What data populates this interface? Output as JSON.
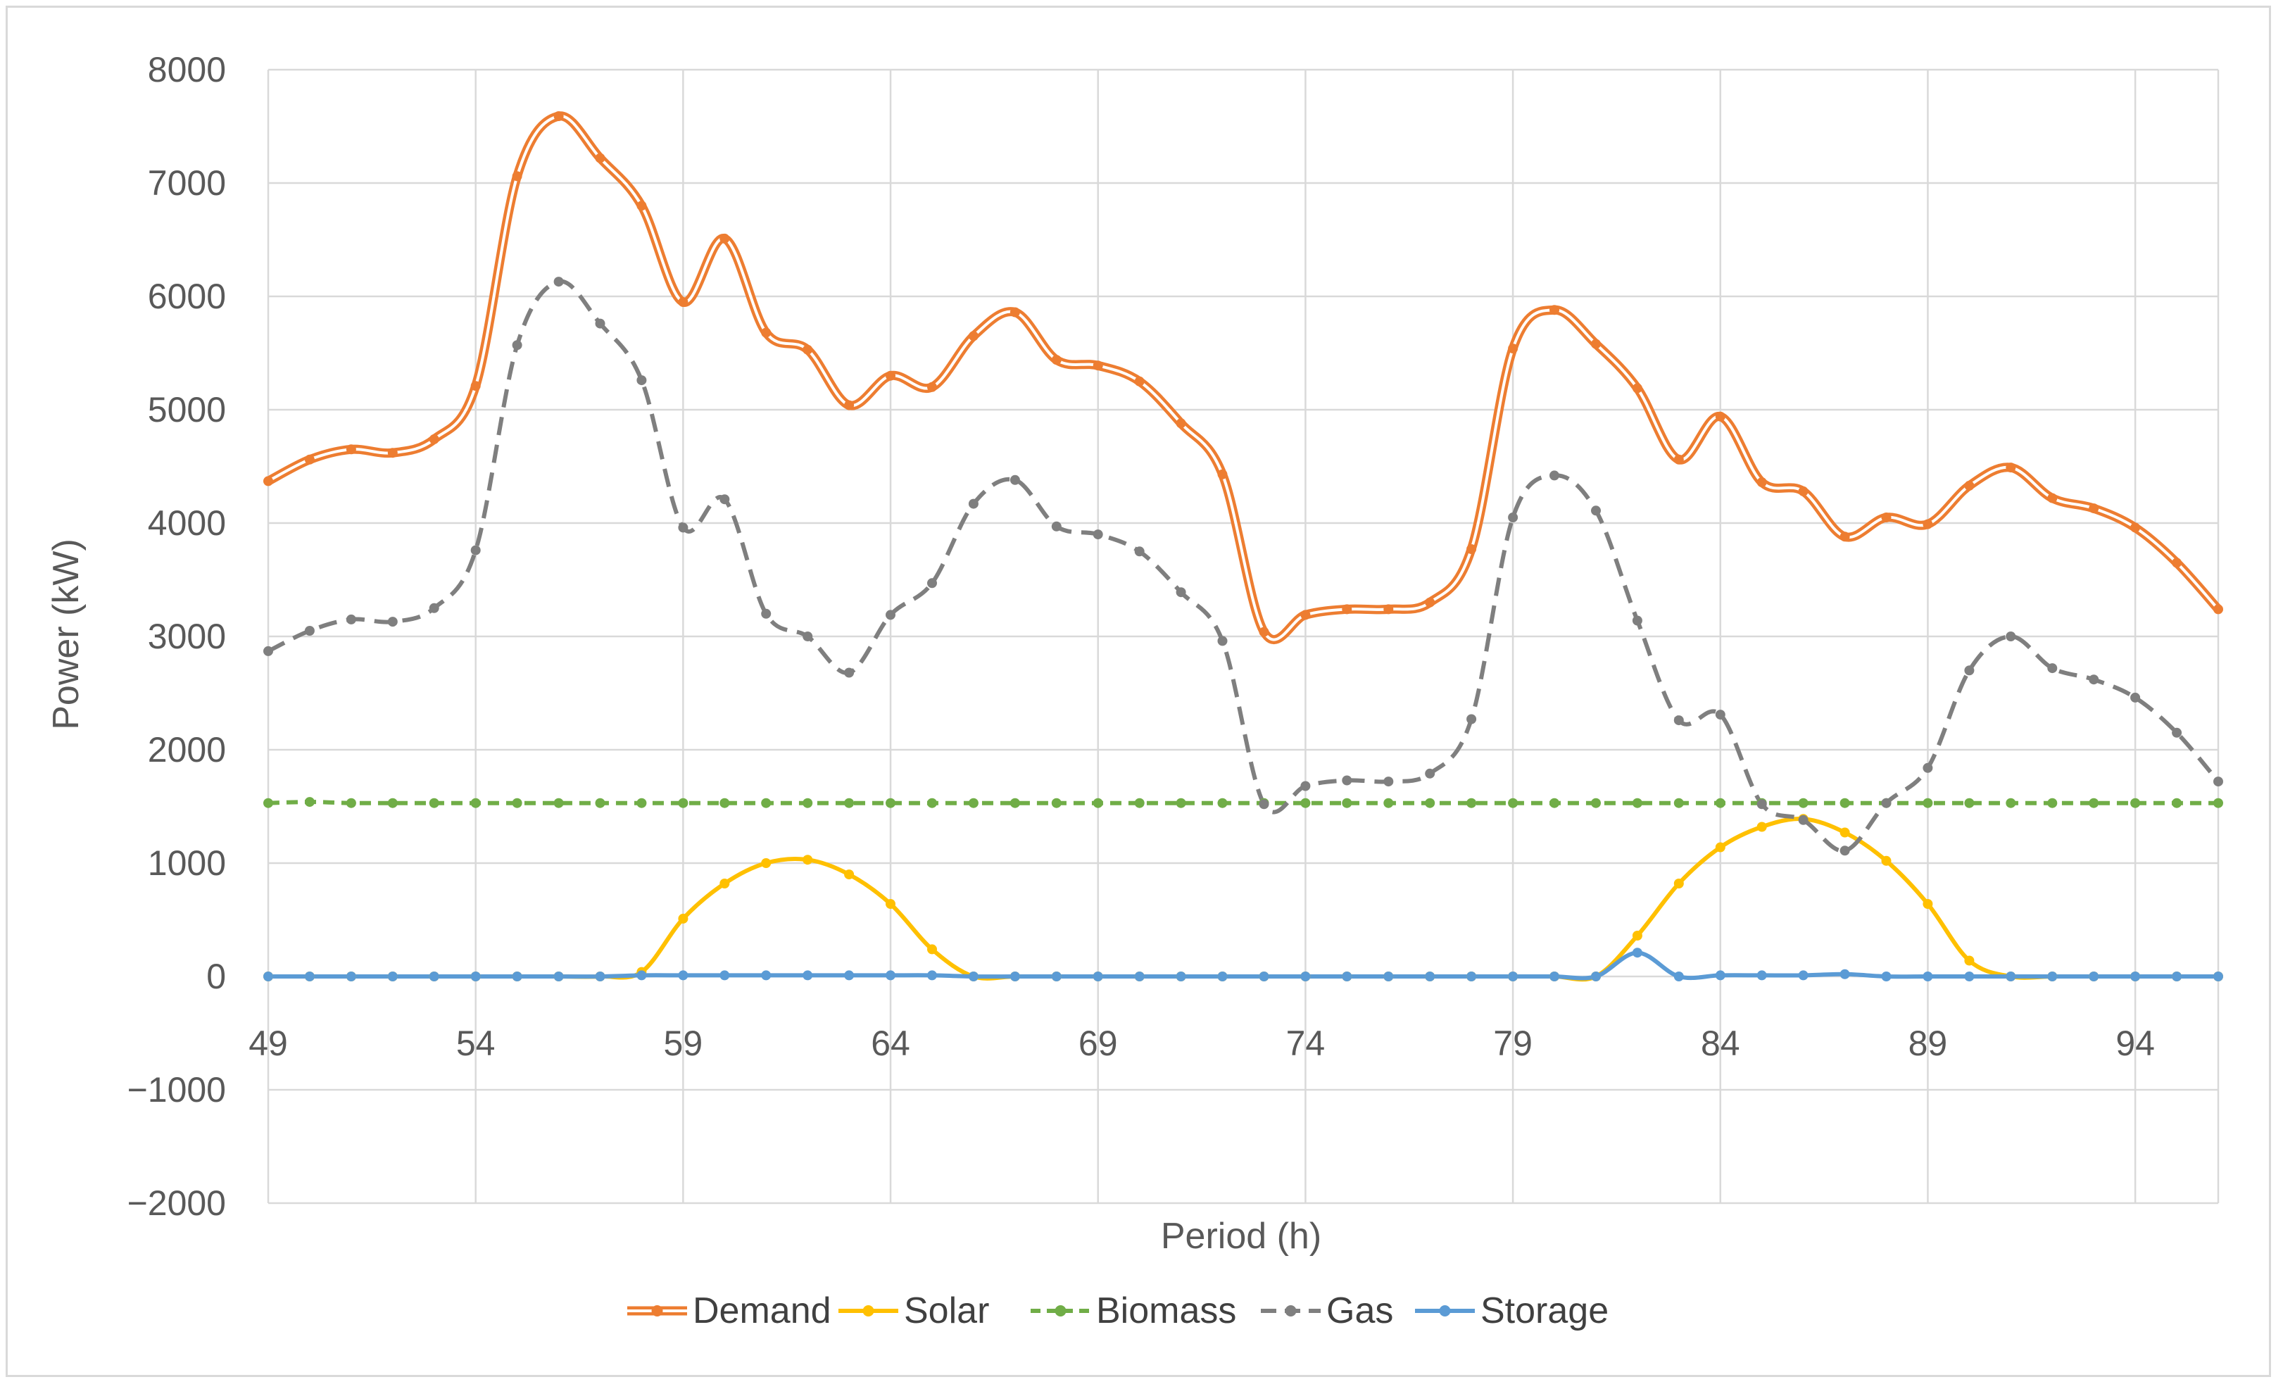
{
  "chart_data": {
    "type": "line",
    "title": "",
    "xlabel": "Period (h)",
    "ylabel": "Power (kW)",
    "xlim": [
      49,
      96
    ],
    "ylim": [
      -2000,
      8000
    ],
    "y_ticks": [
      -2000,
      -1000,
      0,
      1000,
      2000,
      3000,
      4000,
      5000,
      6000,
      7000,
      8000
    ],
    "y_tick_labels": [
      "−2000",
      "−1000",
      "0",
      "1000",
      "2000",
      "3000",
      "4000",
      "5000",
      "6000",
      "7000",
      "8000"
    ],
    "x_ticks": [
      49,
      54,
      59,
      64,
      69,
      74,
      79,
      84,
      89,
      94
    ],
    "x_tick_labels": [
      "49",
      "54",
      "59",
      "64",
      "69",
      "74",
      "79",
      "84",
      "89",
      "94"
    ],
    "grid": true,
    "legend_position": "bottom",
    "x": [
      49,
      50,
      51,
      52,
      53,
      54,
      55,
      56,
      57,
      58,
      59,
      60,
      61,
      62,
      63,
      64,
      65,
      66,
      67,
      68,
      69,
      70,
      71,
      72,
      73,
      74,
      75,
      76,
      77,
      78,
      79,
      80,
      81,
      82,
      83,
      84,
      85,
      86,
      87,
      88,
      89,
      90,
      91,
      92,
      93,
      94,
      95,
      96
    ],
    "series": [
      {
        "name": "Demand",
        "color": "#ED7D31",
        "style": "double",
        "values": [
          4370,
          4560,
          4650,
          4620,
          4740,
          5210,
          7060,
          7590,
          7220,
          6800,
          5950,
          6510,
          5680,
          5530,
          5040,
          5300,
          5200,
          5650,
          5860,
          5440,
          5390,
          5250,
          4880,
          4430,
          3040,
          3190,
          3240,
          3240,
          3300,
          3770,
          5540,
          5880,
          5580,
          5190,
          4560,
          4940,
          4360,
          4280,
          3880,
          4050,
          3990,
          4330,
          4490,
          4220,
          4130,
          3960,
          3650,
          3240
        ]
      },
      {
        "name": "Solar",
        "color": "#FFC000",
        "style": "solid",
        "values": [
          0,
          0,
          0,
          0,
          0,
          0,
          0,
          0,
          0,
          40,
          510,
          820,
          1000,
          1030,
          900,
          640,
          240,
          0,
          0,
          0,
          0,
          0,
          0,
          0,
          0,
          0,
          0,
          0,
          0,
          0,
          0,
          0,
          0,
          360,
          820,
          1140,
          1320,
          1390,
          1270,
          1020,
          640,
          140,
          0,
          0,
          0,
          0,
          0,
          0
        ]
      },
      {
        "name": "Biomass",
        "color": "#70AD47",
        "style": "dashed",
        "values": [
          1530,
          1540,
          1530,
          1530,
          1530,
          1530,
          1530,
          1530,
          1530,
          1530,
          1530,
          1530,
          1530,
          1530,
          1530,
          1530,
          1530,
          1530,
          1530,
          1530,
          1530,
          1530,
          1530,
          1530,
          1530,
          1530,
          1530,
          1530,
          1530,
          1530,
          1530,
          1530,
          1530,
          1530,
          1530,
          1530,
          1530,
          1530,
          1530,
          1530,
          1530,
          1530,
          1530,
          1530,
          1530,
          1530,
          1530,
          1530
        ]
      },
      {
        "name": "Gas",
        "color": "#7F7F7F",
        "style": "dashed",
        "values": [
          2870,
          3050,
          3150,
          3130,
          3250,
          3760,
          5570,
          6130,
          5760,
          5260,
          3960,
          4210,
          3200,
          3000,
          2680,
          3190,
          3470,
          4170,
          4380,
          3970,
          3900,
          3750,
          3390,
          2960,
          1520,
          1680,
          1730,
          1720,
          1790,
          2270,
          4050,
          4420,
          4110,
          3140,
          2260,
          2310,
          1520,
          1380,
          1110,
          1530,
          1840,
          2700,
          3000,
          2720,
          2620,
          2460,
          2150,
          1720
        ]
      },
      {
        "name": "Storage",
        "color": "#5B9BD5",
        "style": "solid",
        "values": [
          0,
          0,
          0,
          0,
          0,
          0,
          0,
          0,
          0,
          10,
          10,
          10,
          10,
          10,
          10,
          10,
          10,
          0,
          0,
          0,
          0,
          0,
          0,
          0,
          0,
          0,
          0,
          0,
          0,
          0,
          0,
          0,
          0,
          210,
          0,
          10,
          10,
          10,
          20,
          0,
          0,
          0,
          0,
          0,
          0,
          0,
          0,
          0
        ]
      }
    ]
  }
}
